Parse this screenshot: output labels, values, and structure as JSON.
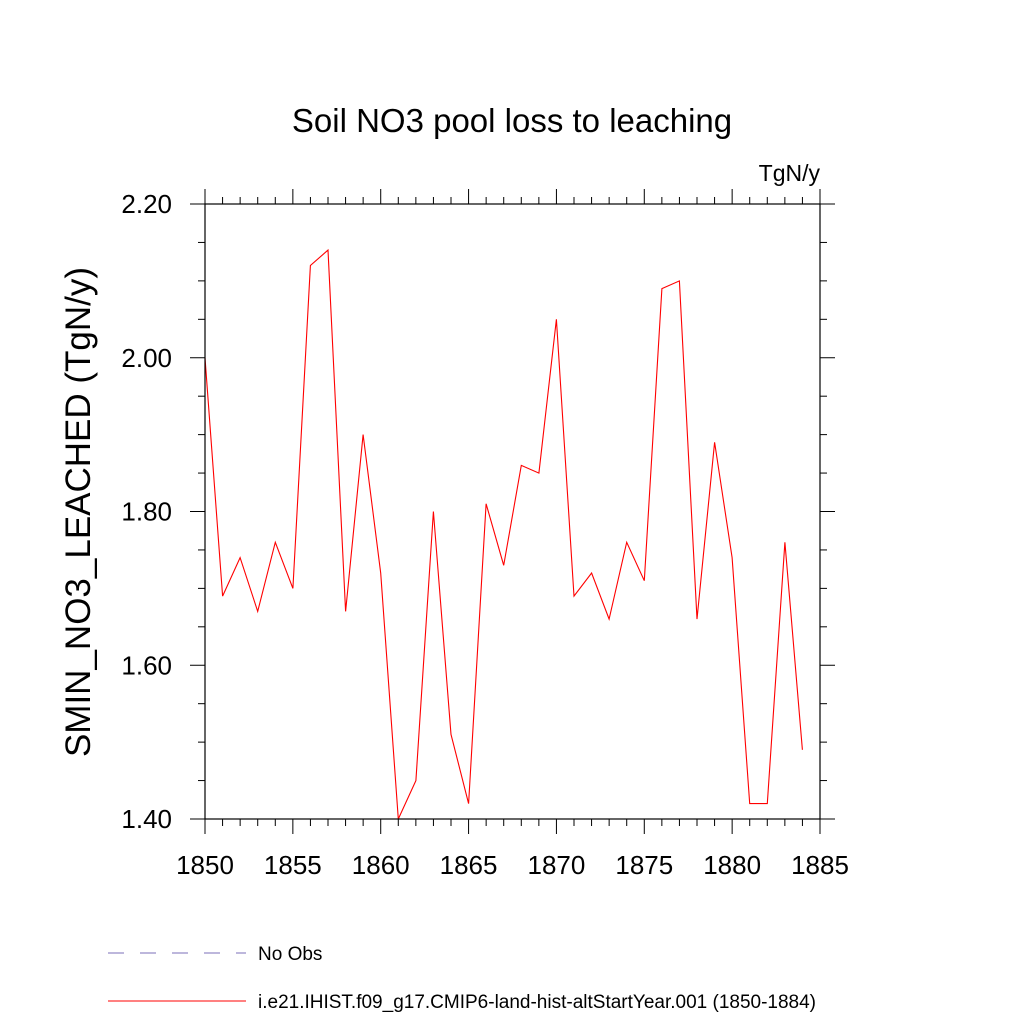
{
  "chart_data": {
    "type": "line",
    "title": "Soil NO3 pool loss to leaching",
    "units": "TgN/y",
    "ylabel": "SMIN_NO3_LEACHED  (TgN/y)",
    "xlabel": "",
    "xlim": [
      1850,
      1885
    ],
    "ylim": [
      1.4,
      2.2
    ],
    "x_ticks": [
      1850,
      1855,
      1860,
      1865,
      1870,
      1875,
      1880,
      1885
    ],
    "x_tick_labels": [
      "1850",
      "1855",
      "1860",
      "1865",
      "1870",
      "1875",
      "1880",
      "1885"
    ],
    "x_minor_step": 1,
    "y_ticks": [
      1.4,
      1.6,
      1.8,
      2.0,
      2.2
    ],
    "y_tick_labels": [
      "1.40",
      "1.60",
      "1.80",
      "2.00",
      "2.20"
    ],
    "y_minor_step": 0.05,
    "grid": false,
    "legend_position": "bottom-left",
    "series": [
      {
        "name": "i.e21.IHIST.f09_g17.CMIP6-land-hist-altStartYear.001 (1850-1884)",
        "color": "#ff0000",
        "dash": "solid",
        "x": [
          1850,
          1851,
          1852,
          1853,
          1854,
          1855,
          1856,
          1857,
          1858,
          1859,
          1860,
          1861,
          1862,
          1863,
          1864,
          1865,
          1866,
          1867,
          1868,
          1869,
          1870,
          1871,
          1872,
          1873,
          1874,
          1875,
          1876,
          1877,
          1878,
          1879,
          1880,
          1881,
          1882,
          1883,
          1884
        ],
        "values": [
          2.0,
          1.69,
          1.74,
          1.67,
          1.76,
          1.7,
          2.12,
          2.14,
          1.67,
          1.9,
          1.72,
          1.4,
          1.45,
          1.8,
          1.51,
          1.42,
          1.81,
          1.73,
          1.86,
          1.85,
          2.05,
          1.69,
          1.72,
          1.66,
          1.76,
          1.71,
          2.09,
          2.1,
          1.66,
          1.89,
          1.74,
          1.42,
          1.42,
          1.76,
          1.49
        ]
      }
    ],
    "legend": [
      {
        "label": "No Obs",
        "color": "#7b6fb8",
        "dash": "dashed"
      },
      {
        "label": "i.e21.IHIST.f09_g17.CMIP6-land-hist-altStartYear.001 (1850-1884)",
        "color": "#ff0000",
        "dash": "solid"
      }
    ]
  }
}
